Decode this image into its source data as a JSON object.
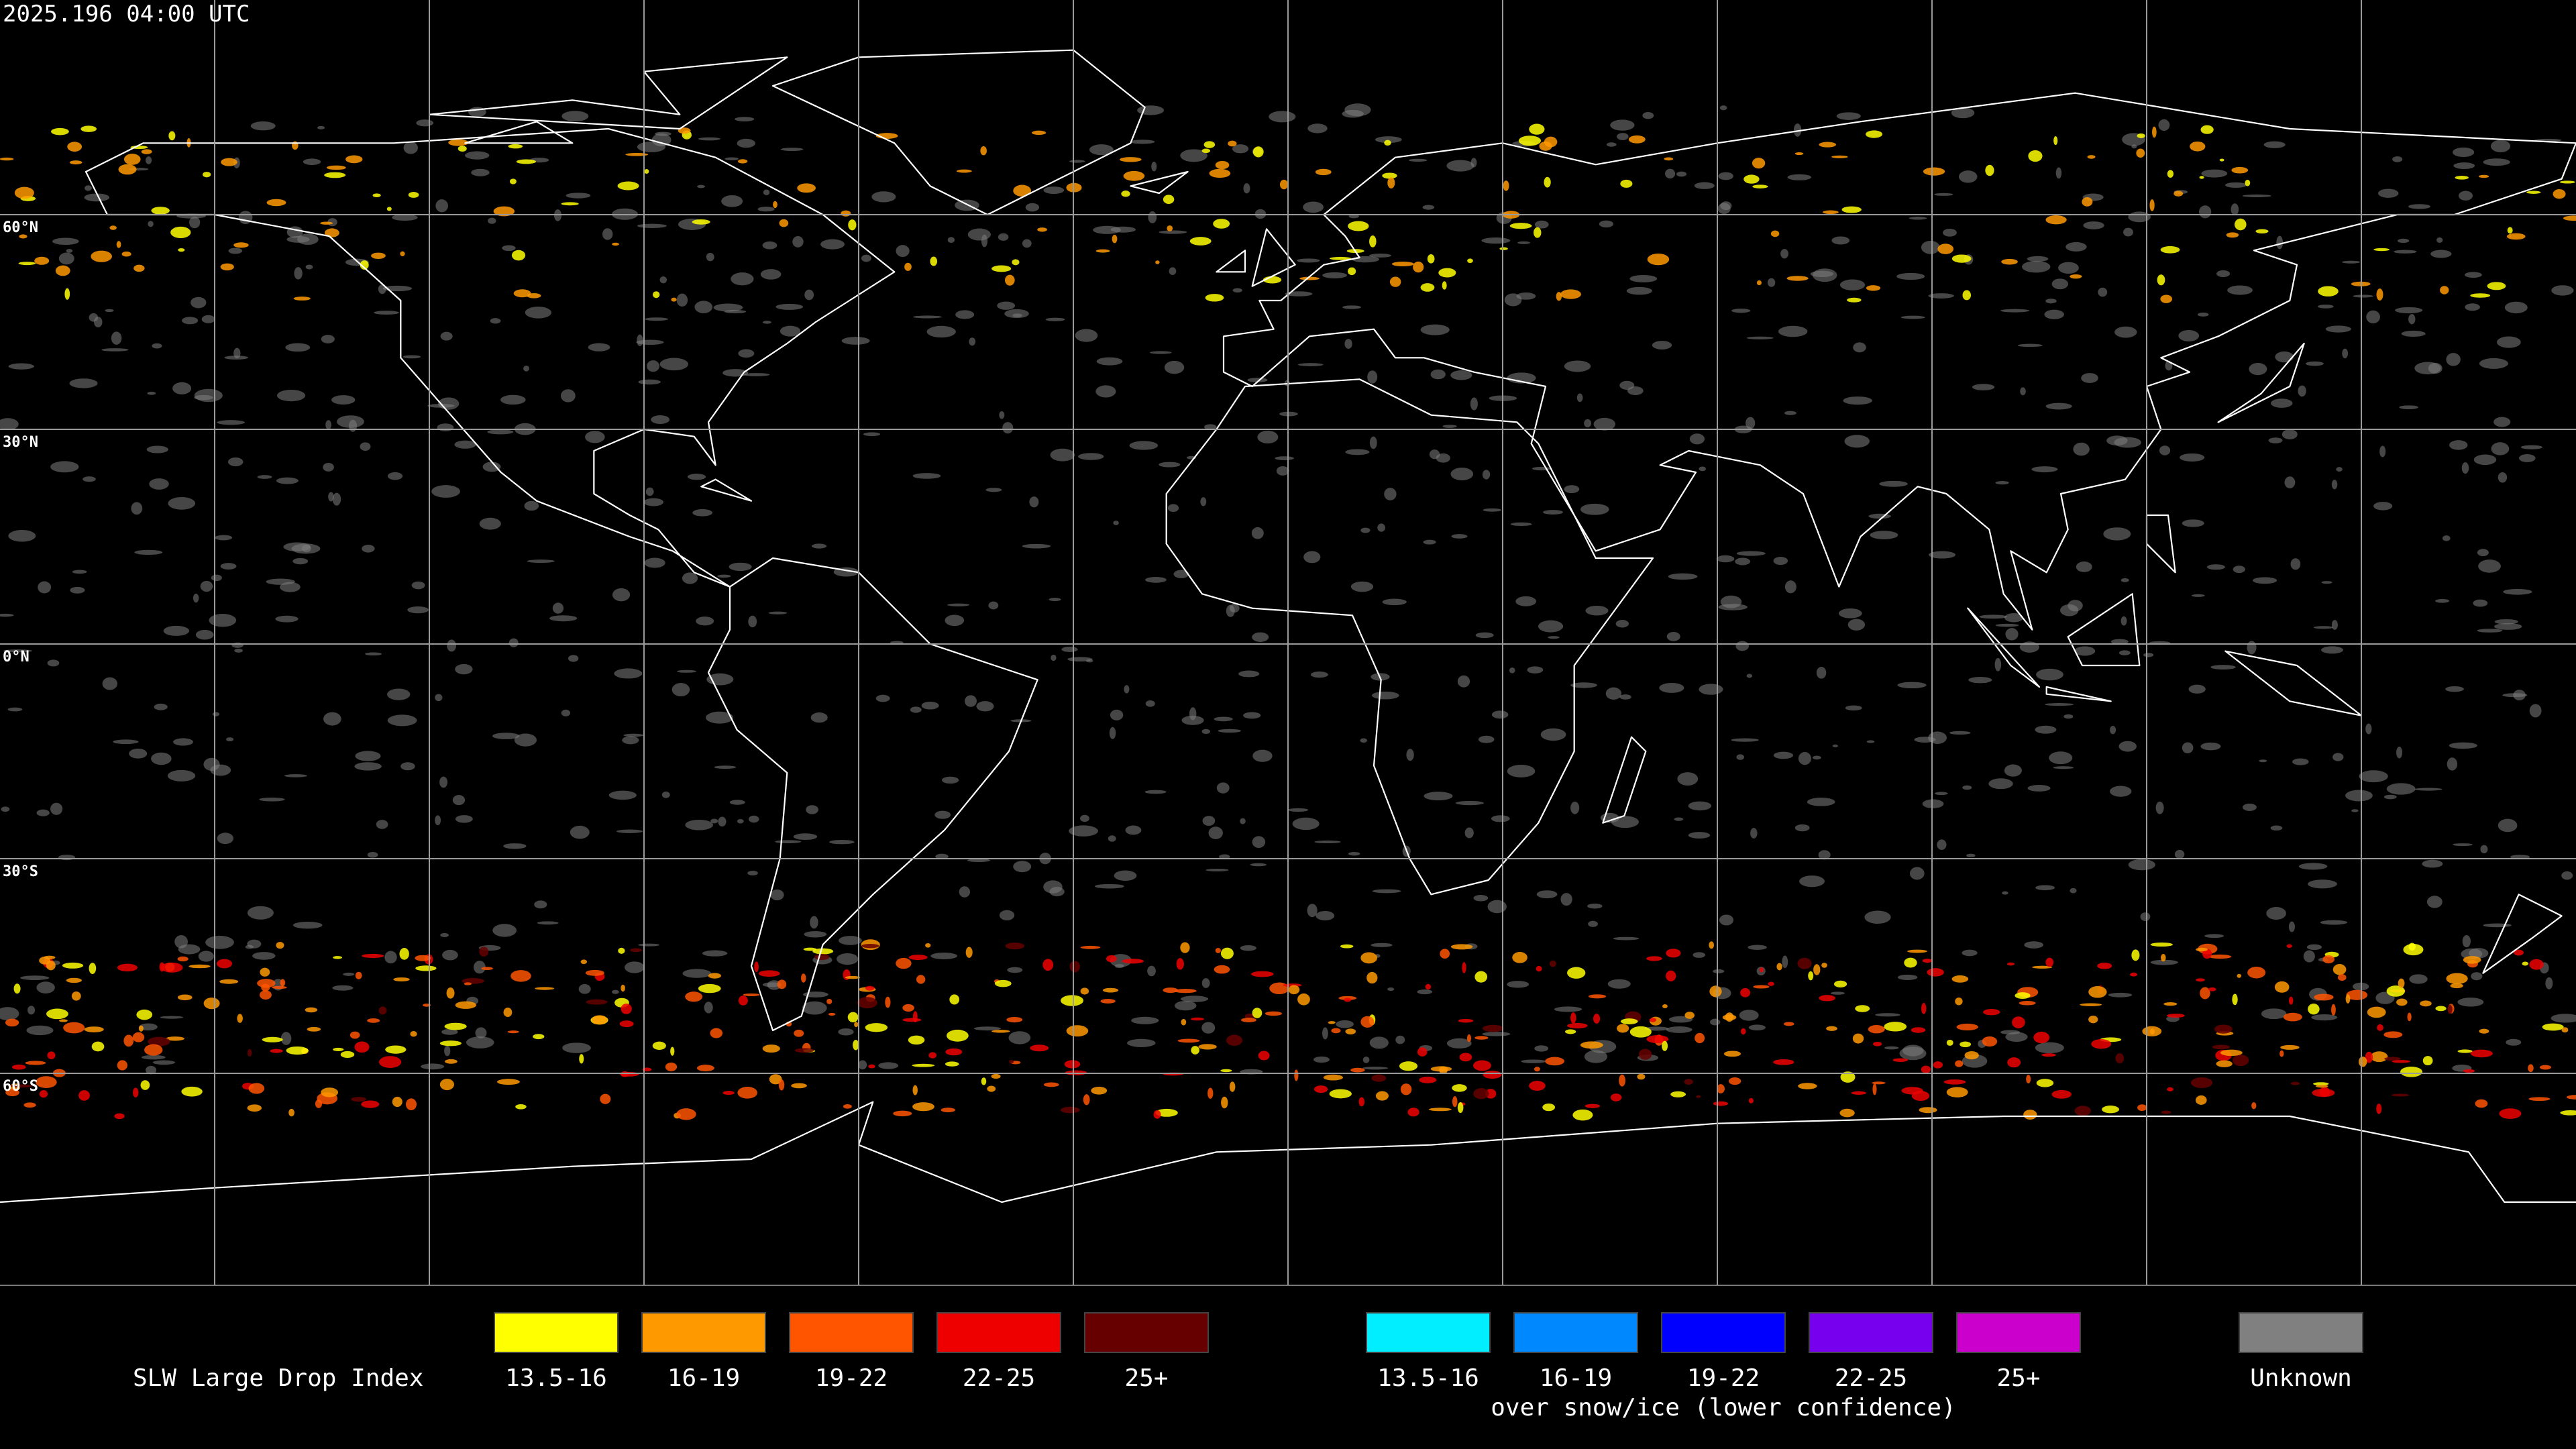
{
  "timestamp": "2025.196 04:00 UTC",
  "lat_labels": [
    "60°N",
    "30°N",
    "0°N",
    "30°S",
    "60°S"
  ],
  "legend": {
    "title": "SLW Large Drop Index",
    "groups": [
      {
        "items": [
          {
            "label": "13.5-16",
            "color": "#ffff00"
          },
          {
            "label": "16-19",
            "color": "#ff9900"
          },
          {
            "label": "19-22",
            "color": "#ff5500"
          },
          {
            "label": "22-25",
            "color": "#ee0000"
          },
          {
            "label": "25+",
            "color": "#660000"
          }
        ]
      },
      {
        "items": [
          {
            "label": "13.5-16",
            "color": "#00eeff"
          },
          {
            "label": "16-19",
            "color": "#0088ff"
          },
          {
            "label": "19-22",
            "color": "#0000ff"
          },
          {
            "label": "22-25",
            "color": "#7700ee"
          },
          {
            "label": "25+",
            "color": "#cc00cc"
          }
        ],
        "caption": "over snow/ice (lower confidence)"
      }
    ],
    "unknown": {
      "label": "Unknown",
      "color": "#808080"
    }
  }
}
